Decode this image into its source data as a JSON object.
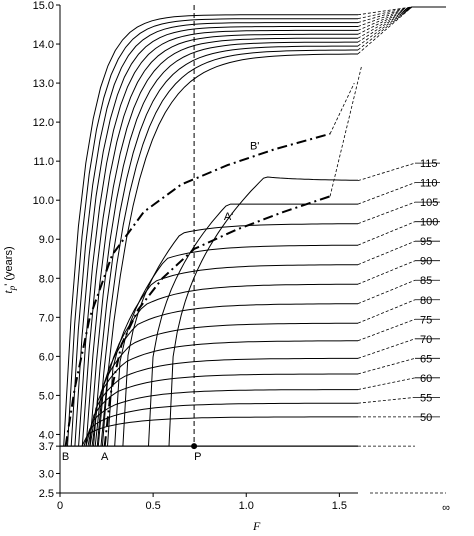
{
  "chart_data": {
    "type": "line",
    "xlabel": "F",
    "ylabel": "t",
    "ylabel_sub": "p",
    "ylabel_rest": "' (years)",
    "xlim": [
      0,
      1.6
    ],
    "ylim": [
      2.5,
      15.0
    ],
    "x_ticks": [
      {
        "value": 0,
        "label": "0"
      },
      {
        "value": 0.5,
        "label": "0.5"
      },
      {
        "value": 1.0,
        "label": "1.0"
      },
      {
        "value": 1.5,
        "label": "1.5"
      }
    ],
    "x_infinity_label": "∞",
    "y_ticks": [
      {
        "value": 2.5,
        "label": "2.5"
      },
      {
        "value": 3.0,
        "label": "3.0"
      },
      {
        "value": 3.7,
        "label": "3.7"
      },
      {
        "value": 4.0,
        "label": "4.0"
      },
      {
        "value": 5.0,
        "label": "5.0"
      },
      {
        "value": 6.0,
        "label": "6.0"
      },
      {
        "value": 7.0,
        "label": "7.0"
      },
      {
        "value": 8.0,
        "label": "8.0"
      },
      {
        "value": 9.0,
        "label": "9.0"
      },
      {
        "value": 10.0,
        "label": "10.0"
      },
      {
        "value": 11.0,
        "label": "11.0"
      },
      {
        "value": 12.0,
        "label": "12.0"
      },
      {
        "value": 13.0,
        "label": "13.0"
      },
      {
        "value": 14.0,
        "label": "14.0"
      },
      {
        "value": 15.0,
        "label": "15.0"
      }
    ],
    "base_level": 3.7,
    "reference_F": 0.72,
    "isopleths": [
      {
        "label": "50",
        "asymptote": 4.45,
        "min_F": 0.25,
        "min_t": 4.2,
        "label_t": 4.45
      },
      {
        "label": "55",
        "asymptote": 4.8,
        "min_F": 0.27,
        "min_t": 4.45,
        "label_t": 4.95
      },
      {
        "label": "60",
        "asymptote": 5.15,
        "min_F": 0.29,
        "min_t": 4.75,
        "label_t": 5.45
      },
      {
        "label": "65",
        "asymptote": 5.55,
        "min_F": 0.31,
        "min_t": 5.1,
        "label_t": 5.95
      },
      {
        "label": "70",
        "asymptote": 5.95,
        "min_F": 0.33,
        "min_t": 5.45,
        "label_t": 6.45
      },
      {
        "label": "75",
        "asymptote": 6.4,
        "min_F": 0.35,
        "min_t": 5.85,
        "label_t": 6.95
      },
      {
        "label": "80",
        "asymptote": 6.85,
        "min_F": 0.38,
        "min_t": 6.3,
        "label_t": 7.45
      },
      {
        "label": "85",
        "asymptote": 7.35,
        "min_F": 0.41,
        "min_t": 6.8,
        "label_t": 7.95
      },
      {
        "label": "90",
        "asymptote": 7.85,
        "min_F": 0.45,
        "min_t": 7.3,
        "label_t": 8.45
      },
      {
        "label": "95",
        "asymptote": 8.35,
        "min_F": 0.5,
        "min_t": 7.9,
        "label_t": 8.95
      },
      {
        "label": "100",
        "asymptote": 8.85,
        "min_F": 0.57,
        "min_t": 8.5,
        "label_t": 9.45
      },
      {
        "label": "105",
        "asymptote": 9.4,
        "min_F": 0.65,
        "min_t": 9.15,
        "label_t": 9.95
      },
      {
        "label": "110",
        "asymptote": 9.9,
        "min_F": 0.9,
        "min_t": 9.9,
        "label_t": 10.45
      },
      {
        "label": "115",
        "asymptote": 10.5,
        "min_F": 1.1,
        "min_t": 10.6,
        "label_t": 10.95
      }
    ],
    "upper_curves": [
      {
        "start_F": 0.02,
        "plateau": 14.75
      },
      {
        "start_F": 0.04,
        "plateau": 14.65
      },
      {
        "start_F": 0.06,
        "plateau": 14.55
      },
      {
        "start_F": 0.08,
        "plateau": 14.45
      },
      {
        "start_F": 0.1,
        "plateau": 14.35
      },
      {
        "start_F": 0.12,
        "plateau": 14.25
      },
      {
        "start_F": 0.14,
        "plateau": 14.15
      },
      {
        "start_F": 0.16,
        "plateau": 14.05
      },
      {
        "start_F": 0.18,
        "plateau": 13.95
      },
      {
        "start_F": 0.2,
        "plateau": 13.85
      },
      {
        "start_F": 0.22,
        "plateau": 13.75
      }
    ],
    "optimum_lines": [
      {
        "name": "A-A'",
        "points": [
          [
            0.24,
            3.7
          ],
          [
            0.27,
            5.0
          ],
          [
            0.33,
            6.3
          ],
          [
            0.42,
            7.2
          ],
          [
            0.55,
            8.0
          ],
          [
            0.72,
            8.75
          ],
          [
            0.95,
            9.25
          ],
          [
            1.2,
            9.7
          ],
          [
            1.45,
            10.1
          ]
        ],
        "ext_end": [
          1.62,
          13.45
        ]
      },
      {
        "name": "B-B'",
        "points": [
          [
            0.03,
            3.7
          ],
          [
            0.08,
            5.2
          ],
          [
            0.16,
            7.0
          ],
          [
            0.28,
            8.6
          ],
          [
            0.45,
            9.7
          ],
          [
            0.65,
            10.4
          ],
          [
            0.9,
            10.9
          ],
          [
            1.15,
            11.3
          ],
          [
            1.45,
            11.7
          ]
        ],
        "ext_end": [
          1.58,
          13.0
        ]
      }
    ],
    "annotations": [
      {
        "text": "B",
        "F": 0.01,
        "t": 3.45
      },
      {
        "text": "A",
        "F": 0.22,
        "t": 3.45
      },
      {
        "text": "P",
        "F": 0.72,
        "t": 3.45
      },
      {
        "text": "A'",
        "F": 0.88,
        "t": 9.6
      },
      {
        "text": "B'",
        "F": 1.02,
        "t": 11.4
      }
    ]
  }
}
